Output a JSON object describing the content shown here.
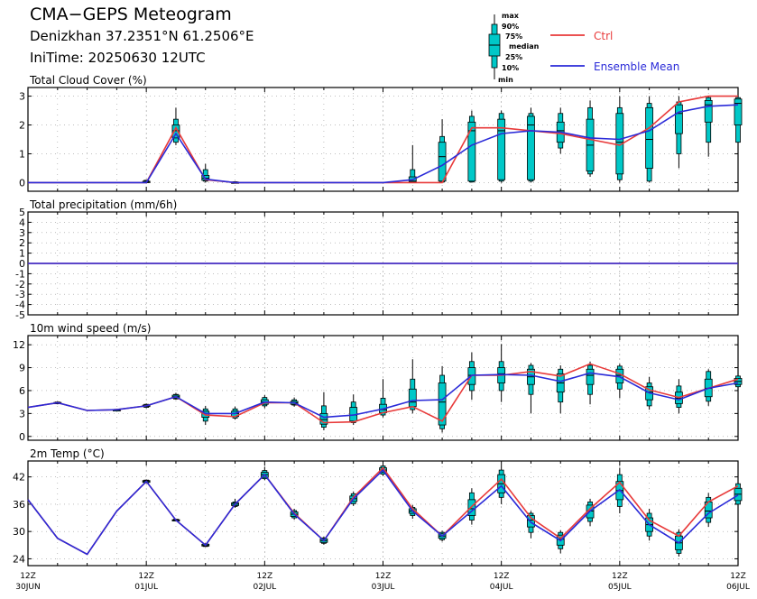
{
  "header": {
    "title": "CMA−GEPS Meteogram",
    "location": "Denizkhan 37.2351°N 61.2506°E",
    "init_time": "IniTime: 20250630 12UTC"
  },
  "legend": {
    "box_labels": [
      "max",
      "90%",
      "75%",
      "median",
      "25%",
      "10%",
      "min"
    ],
    "ctrl_label": "Ctrl",
    "mean_label": "Ensemble Mean"
  },
  "colors": {
    "ctrl": "#e83a3a",
    "mean": "#2a2ad8",
    "box": "#00c8c8",
    "grid": "#999999"
  },
  "chart_data": [
    {
      "type": "line",
      "title": "Total Cloud Cover (%)",
      "ylim": [
        -0.3,
        3.3
      ],
      "yticks": [
        0,
        1,
        2,
        3
      ],
      "hgrid": [
        0,
        1,
        2,
        3
      ],
      "x": [
        0,
        1,
        2,
        3,
        4,
        5,
        6,
        7,
        8,
        9,
        10,
        11,
        12,
        13,
        14,
        15,
        16,
        17,
        18,
        19,
        20,
        21,
        22,
        23,
        24
      ],
      "ctrl": [
        0,
        0,
        0,
        0,
        0,
        1.9,
        0.1,
        0,
        0,
        0,
        0,
        0,
        0,
        0,
        0,
        1.9,
        1.9,
        1.8,
        1.7,
        1.5,
        1.3,
        1.9,
        2.8,
        3.0,
        3.0
      ],
      "mean": [
        0,
        0,
        0,
        0,
        0,
        1.7,
        0.12,
        0,
        0,
        0,
        0,
        0,
        0,
        0.1,
        0.6,
        1.3,
        1.7,
        1.8,
        1.75,
        1.55,
        1.5,
        1.8,
        2.45,
        2.65,
        2.7
      ],
      "boxes": [
        {
          "x": 4,
          "min": 0,
          "p10": 0,
          "p25": 0,
          "median": 0.02,
          "p75": 0.05,
          "p90": 0.08,
          "max": 0.1
        },
        {
          "x": 5,
          "min": 1.3,
          "p10": 1.4,
          "p25": 1.55,
          "median": 1.8,
          "p75": 2.0,
          "p90": 2.2,
          "max": 2.6
        },
        {
          "x": 6,
          "min": 0,
          "p10": 0.05,
          "p25": 0.08,
          "median": 0.15,
          "p75": 0.25,
          "p90": 0.45,
          "max": 0.65
        },
        {
          "x": 7,
          "min": 0,
          "p10": 0,
          "p25": 0,
          "median": 0,
          "p75": 0.02,
          "p90": 0.03,
          "max": 0.05
        },
        {
          "x": 13,
          "min": 0,
          "p10": 0,
          "p25": 0.02,
          "median": 0.05,
          "p75": 0.2,
          "p90": 0.45,
          "max": 1.3
        },
        {
          "x": 14,
          "min": 0,
          "p10": 0.02,
          "p25": 0.05,
          "median": 0.9,
          "p75": 1.4,
          "p90": 1.6,
          "max": 2.2
        },
        {
          "x": 15,
          "min": 0,
          "p10": 0.02,
          "p25": 0.05,
          "median": 1.8,
          "p75": 2.1,
          "p90": 2.3,
          "max": 2.5
        },
        {
          "x": 16,
          "min": 0,
          "p10": 0.05,
          "p25": 0.1,
          "median": 1.8,
          "p75": 2.2,
          "p90": 2.4,
          "max": 2.5
        },
        {
          "x": 17,
          "min": 0,
          "p10": 0.05,
          "p25": 0.1,
          "median": 2.0,
          "p75": 2.3,
          "p90": 2.4,
          "max": 2.6
        },
        {
          "x": 18,
          "min": 1.0,
          "p10": 1.2,
          "p25": 1.4,
          "median": 1.8,
          "p75": 2.1,
          "p90": 2.4,
          "max": 2.6
        },
        {
          "x": 19,
          "min": 0.2,
          "p10": 0.3,
          "p25": 0.4,
          "median": 1.3,
          "p75": 2.2,
          "p90": 2.6,
          "max": 2.85
        },
        {
          "x": 20,
          "min": 0,
          "p10": 0.1,
          "p25": 0.3,
          "median": 1.4,
          "p75": 2.4,
          "p90": 2.6,
          "max": 3.0
        },
        {
          "x": 21,
          "min": 0,
          "p10": 0.05,
          "p25": 0.5,
          "median": 1.5,
          "p75": 2.6,
          "p90": 2.75,
          "max": 3.0
        },
        {
          "x": 22,
          "min": 0.5,
          "p10": 1.0,
          "p25": 1.7,
          "median": 2.4,
          "p75": 2.7,
          "p90": 2.8,
          "max": 3.0
        },
        {
          "x": 23,
          "min": 0.9,
          "p10": 1.4,
          "p25": 2.1,
          "median": 2.7,
          "p75": 2.85,
          "p90": 2.95,
          "max": 3.0
        },
        {
          "x": 24,
          "min": 0.9,
          "p10": 1.4,
          "p25": 2.0,
          "median": 2.75,
          "p75": 2.9,
          "p90": 2.95,
          "max": 3.0
        }
      ]
    },
    {
      "type": "line",
      "title": "Total precipitation (mm/6h)",
      "ylim": [
        -5,
        5
      ],
      "yticks": [
        -5,
        -4,
        -3,
        -2,
        -1,
        0,
        1,
        2,
        3,
        4,
        5
      ],
      "hgrid": [
        -4,
        -3,
        -2,
        -1,
        0,
        1,
        2,
        3,
        4
      ],
      "x": [
        0,
        1,
        2,
        3,
        4,
        5,
        6,
        7,
        8,
        9,
        10,
        11,
        12,
        13,
        14,
        15,
        16,
        17,
        18,
        19,
        20,
        21,
        22,
        23,
        24
      ],
      "ctrl": [
        0,
        0,
        0,
        0,
        0,
        0,
        0,
        0,
        0,
        0,
        0,
        0,
        0,
        0,
        0,
        0,
        0,
        0,
        0,
        0,
        0,
        0,
        0,
        0,
        0
      ],
      "mean": [
        0,
        0,
        0,
        0,
        0,
        0,
        0,
        0,
        0,
        0,
        0,
        0,
        0,
        0,
        0,
        0,
        0,
        0,
        0,
        0,
        0,
        0,
        0,
        0,
        0
      ],
      "boxes": []
    },
    {
      "type": "line",
      "title": "10m wind speed (m/s)",
      "ylim": [
        -0.5,
        13.2
      ],
      "yticks": [
        0,
        3,
        6,
        9,
        12
      ],
      "hgrid": [
        0,
        3,
        6,
        9,
        12
      ],
      "x": [
        0,
        1,
        2,
        3,
        4,
        5,
        6,
        7,
        8,
        9,
        10,
        11,
        12,
        13,
        14,
        15,
        16,
        17,
        18,
        19,
        20,
        21,
        22,
        23,
        24
      ],
      "ctrl": [
        3.8,
        4.4,
        3.4,
        3.5,
        4.0,
        5.2,
        2.8,
        2.6,
        4.4,
        4.4,
        1.8,
        1.9,
        3.1,
        3.9,
        2.0,
        8.0,
        8.0,
        8.5,
        7.9,
        9.5,
        8.2,
        6.1,
        5.1,
        6.3,
        7.5
      ],
      "mean": [
        3.8,
        4.4,
        3.4,
        3.5,
        4.0,
        5.2,
        3.0,
        3.0,
        4.5,
        4.4,
        2.5,
        2.8,
        3.6,
        4.7,
        4.8,
        8.0,
        8.1,
        8.0,
        7.2,
        8.3,
        7.8,
        5.7,
        4.8,
        6.3,
        7.0
      ],
      "boxes": [
        {
          "x": 1,
          "min": 4.2,
          "p10": 4.3,
          "p25": 4.35,
          "median": 4.4,
          "p75": 4.45,
          "p90": 4.5,
          "max": 4.6
        },
        {
          "x": 3,
          "min": 3.3,
          "p10": 3.35,
          "p25": 3.4,
          "median": 3.45,
          "p75": 3.5,
          "p90": 3.55,
          "max": 3.6
        },
        {
          "x": 4,
          "min": 3.7,
          "p10": 3.8,
          "p25": 3.9,
          "median": 4.0,
          "p75": 4.1,
          "p90": 4.2,
          "max": 4.3
        },
        {
          "x": 5,
          "min": 4.8,
          "p10": 4.9,
          "p25": 5.0,
          "median": 5.2,
          "p75": 5.4,
          "p90": 5.5,
          "max": 5.7
        },
        {
          "x": 6,
          "min": 1.5,
          "p10": 2.0,
          "p25": 2.5,
          "median": 3.0,
          "p75": 3.3,
          "p90": 3.6,
          "max": 4.0
        },
        {
          "x": 7,
          "min": 2.2,
          "p10": 2.4,
          "p25": 2.6,
          "median": 3.0,
          "p75": 3.3,
          "p90": 3.6,
          "max": 3.9
        },
        {
          "x": 8,
          "min": 3.7,
          "p10": 4.0,
          "p25": 4.2,
          "median": 4.5,
          "p75": 4.8,
          "p90": 5.1,
          "max": 5.4
        },
        {
          "x": 9,
          "min": 3.9,
          "p10": 4.1,
          "p25": 4.2,
          "median": 4.4,
          "p75": 4.6,
          "p90": 4.8,
          "max": 5.1
        },
        {
          "x": 10,
          "min": 0.8,
          "p10": 1.2,
          "p25": 1.6,
          "median": 2.2,
          "p75": 3.0,
          "p90": 4.0,
          "max": 5.8
        },
        {
          "x": 11,
          "min": 1.5,
          "p10": 1.8,
          "p25": 2.0,
          "median": 2.8,
          "p75": 3.8,
          "p90": 4.5,
          "max": 5.5
        },
        {
          "x": 12,
          "min": 2.5,
          "p10": 2.8,
          "p25": 3.1,
          "median": 3.5,
          "p75": 4.2,
          "p90": 5.0,
          "max": 7.5
        },
        {
          "x": 13,
          "min": 3.0,
          "p10": 3.5,
          "p25": 3.9,
          "median": 4.5,
          "p75": 6.2,
          "p90": 7.5,
          "max": 10.1
        },
        {
          "x": 14,
          "min": 0.5,
          "p10": 1.0,
          "p25": 1.5,
          "median": 4.5,
          "p75": 7.0,
          "p90": 8.0,
          "max": 9.2
        },
        {
          "x": 15,
          "min": 4.8,
          "p10": 6.0,
          "p25": 6.8,
          "median": 8.0,
          "p75": 9.0,
          "p90": 9.8,
          "max": 11.0
        },
        {
          "x": 16,
          "min": 4.5,
          "p10": 6.0,
          "p25": 7.0,
          "median": 8.2,
          "p75": 9.0,
          "p90": 9.8,
          "max": 12.1
        },
        {
          "x": 17,
          "min": 3.0,
          "p10": 5.5,
          "p25": 6.8,
          "median": 7.8,
          "p75": 8.8,
          "p90": 9.3,
          "max": 9.6
        },
        {
          "x": 18,
          "min": 3.0,
          "p10": 4.5,
          "p25": 5.8,
          "median": 7.0,
          "p75": 8.2,
          "p90": 8.8,
          "max": 9.3
        },
        {
          "x": 19,
          "min": 4.2,
          "p10": 5.5,
          "p25": 6.8,
          "median": 8.0,
          "p75": 8.8,
          "p90": 9.3,
          "max": 9.8
        },
        {
          "x": 20,
          "min": 5.0,
          "p10": 6.2,
          "p25": 7.0,
          "median": 8.0,
          "p75": 8.8,
          "p90": 9.2,
          "max": 9.5
        },
        {
          "x": 21,
          "min": 3.5,
          "p10": 4.0,
          "p25": 4.8,
          "median": 5.8,
          "p75": 6.5,
          "p90": 7.0,
          "max": 7.8
        },
        {
          "x": 22,
          "min": 3.0,
          "p10": 3.8,
          "p25": 4.3,
          "median": 5.0,
          "p75": 5.8,
          "p90": 6.6,
          "max": 7.5
        },
        {
          "x": 23,
          "min": 4.0,
          "p10": 4.6,
          "p25": 5.2,
          "median": 6.3,
          "p75": 7.5,
          "p90": 8.5,
          "max": 8.8
        },
        {
          "x": 24,
          "min": 6.0,
          "p10": 6.5,
          "p25": 6.8,
          "median": 7.2,
          "p75": 7.6,
          "p90": 7.9,
          "max": 8.2
        }
      ]
    },
    {
      "type": "line",
      "title": "2m Temp (°C)",
      "ylim": [
        22.5,
        45.5
      ],
      "yticks": [
        24,
        30,
        36,
        42
      ],
      "hgrid": [
        24,
        30,
        36,
        42
      ],
      "x": [
        0,
        1,
        2,
        3,
        4,
        5,
        6,
        7,
        8,
        9,
        10,
        11,
        12,
        13,
        14,
        15,
        16,
        17,
        18,
        19,
        20,
        21,
        22,
        23,
        24
      ],
      "ctrl": [
        37,
        28.5,
        25,
        34.5,
        41,
        32.5,
        27,
        36,
        42.5,
        34,
        28,
        37.5,
        44,
        35,
        29,
        35.5,
        41.5,
        33,
        28.5,
        35,
        40.8,
        32.5,
        29,
        36.5,
        40
      ],
      "mean": [
        37,
        28.5,
        25,
        34.5,
        41,
        32.5,
        27,
        36,
        42.5,
        33.8,
        28,
        37.2,
        43.5,
        34.5,
        29,
        34.5,
        40,
        32,
        28,
        34.5,
        39.2,
        31.5,
        27.5,
        34,
        38
      ],
      "boxes": [
        {
          "x": 4,
          "min": 40.6,
          "p10": 40.7,
          "p25": 40.8,
          "median": 41.0,
          "p75": 41.2,
          "p90": 41.3,
          "max": 41.4
        },
        {
          "x": 5,
          "min": 32.2,
          "p10": 32.3,
          "p25": 32.4,
          "median": 32.5,
          "p75": 32.6,
          "p90": 32.7,
          "max": 32.8
        },
        {
          "x": 6,
          "min": 26.6,
          "p10": 26.7,
          "p25": 26.8,
          "median": 27.0,
          "p75": 27.2,
          "p90": 27.3,
          "max": 27.4
        },
        {
          "x": 7,
          "min": 35.2,
          "p10": 35.5,
          "p25": 35.7,
          "median": 36.0,
          "p75": 36.3,
          "p90": 36.5,
          "max": 37.2
        },
        {
          "x": 8,
          "min": 41.3,
          "p10": 41.6,
          "p25": 41.9,
          "median": 42.5,
          "p75": 43.0,
          "p90": 43.4,
          "max": 44.2
        },
        {
          "x": 9,
          "min": 32.6,
          "p10": 33.0,
          "p25": 33.3,
          "median": 33.8,
          "p75": 34.3,
          "p90": 34.6,
          "max": 35.0
        },
        {
          "x": 10,
          "min": 27.1,
          "p10": 27.4,
          "p25": 27.6,
          "median": 28.0,
          "p75": 28.4,
          "p90": 28.6,
          "max": 28.9
        },
        {
          "x": 11,
          "min": 35.6,
          "p10": 36.1,
          "p25": 36.6,
          "median": 37.2,
          "p75": 37.8,
          "p90": 38.3,
          "max": 38.8
        },
        {
          "x": 12,
          "min": 42.2,
          "p10": 42.6,
          "p25": 43.0,
          "median": 43.5,
          "p75": 44.0,
          "p90": 44.4,
          "max": 44.8
        },
        {
          "x": 13,
          "min": 32.8,
          "p10": 33.5,
          "p25": 34.0,
          "median": 34.5,
          "p75": 35.0,
          "p90": 35.3,
          "max": 35.8
        },
        {
          "x": 14,
          "min": 27.8,
          "p10": 28.2,
          "p25": 28.5,
          "median": 29.0,
          "p75": 29.5,
          "p90": 29.8,
          "max": 30.2
        },
        {
          "x": 15,
          "min": 31.5,
          "p10": 32.5,
          "p25": 33.5,
          "median": 35.0,
          "p75": 37.0,
          "p90": 38.5,
          "max": 39.5
        },
        {
          "x": 16,
          "min": 36.0,
          "p10": 37.5,
          "p25": 38.5,
          "median": 40.5,
          "p75": 42.5,
          "p90": 43.5,
          "max": 44.5
        },
        {
          "x": 17,
          "min": 28.5,
          "p10": 29.8,
          "p25": 31.0,
          "median": 32.5,
          "p75": 33.5,
          "p90": 34.0,
          "max": 34.5
        },
        {
          "x": 18,
          "min": 25.2,
          "p10": 26.2,
          "p25": 27.0,
          "median": 28.3,
          "p75": 29.2,
          "p90": 29.8,
          "max": 30.3
        },
        {
          "x": 19,
          "min": 31.2,
          "p10": 32.2,
          "p25": 33.0,
          "median": 34.5,
          "p75": 35.8,
          "p90": 36.5,
          "max": 37.2
        },
        {
          "x": 20,
          "min": 34.0,
          "p10": 35.5,
          "p25": 37.0,
          "median": 39.0,
          "p75": 41.0,
          "p90": 42.5,
          "max": 44.0
        },
        {
          "x": 21,
          "min": 28.0,
          "p10": 29.0,
          "p25": 30.0,
          "median": 31.5,
          "p75": 33.0,
          "p90": 34.0,
          "max": 35.0
        },
        {
          "x": 22,
          "min": 24.5,
          "p10": 25.2,
          "p25": 26.0,
          "median": 27.5,
          "p75": 29.0,
          "p90": 29.8,
          "max": 30.5
        },
        {
          "x": 23,
          "min": 31.0,
          "p10": 32.0,
          "p25": 33.0,
          "median": 34.5,
          "p75": 36.5,
          "p90": 37.5,
          "max": 38.5
        },
        {
          "x": 24,
          "min": 35.0,
          "p10": 36.0,
          "p25": 36.8,
          "median": 38.2,
          "p75": 39.5,
          "p90": 40.5,
          "max": 41.5
        }
      ]
    }
  ],
  "xaxis": {
    "ticks": [
      {
        "x": 0,
        "hour": "12Z",
        "date": "30JUN"
      },
      {
        "x": 4,
        "hour": "12Z",
        "date": "01JUL"
      },
      {
        "x": 8,
        "hour": "12Z",
        "date": "02JUL"
      },
      {
        "x": 12,
        "hour": "12Z",
        "date": "03JUL"
      },
      {
        "x": 16,
        "hour": "12Z",
        "date": "04JUL"
      },
      {
        "x": 20,
        "hour": "12Z",
        "date": "05JUL"
      },
      {
        "x": 24,
        "hour": "12Z",
        "date": "06JUL"
      }
    ],
    "xlim": [
      0,
      24
    ]
  }
}
